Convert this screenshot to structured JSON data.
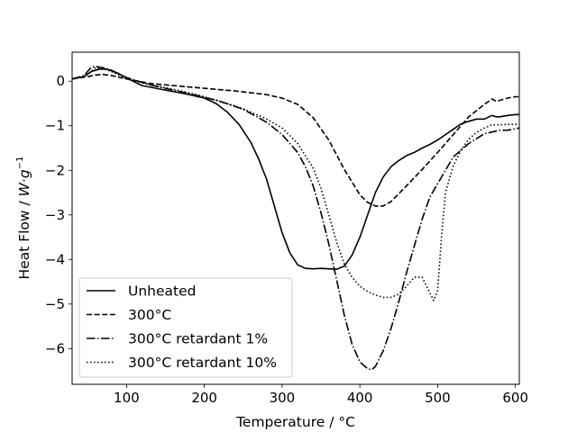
{
  "chart_data": {
    "type": "line",
    "xlabel": "Temperature / °C",
    "ylabel_parts": {
      "main": "Heat Flow / ",
      "w": "W",
      "dot": "·",
      "g": "g",
      "exp": "−1"
    },
    "xlim": [
      30,
      605
    ],
    "ylim": [
      -6.8,
      0.65
    ],
    "xticks": [
      100,
      200,
      300,
      400,
      500,
      600
    ],
    "xtick_labels": [
      "100",
      "200",
      "300",
      "400",
      "500",
      "600"
    ],
    "yticks": [
      0,
      -1,
      -2,
      -3,
      -4,
      -5,
      -6
    ],
    "ytick_labels": [
      "0",
      "−1",
      "−2",
      "−3",
      "−4",
      "−5",
      "−6"
    ],
    "grid": false,
    "legend_position": "lower-left",
    "series": [
      {
        "name": "Unheated",
        "dash": "solid",
        "x": [
          30,
          45,
          55,
          65,
          75,
          90,
          100,
          120,
          150,
          175,
          200,
          215,
          230,
          245,
          260,
          270,
          280,
          290,
          300,
          310,
          320,
          330,
          340,
          350,
          360,
          370,
          380,
          390,
          400,
          410,
          420,
          430,
          440,
          450,
          460,
          470,
          480,
          490,
          500,
          510,
          520,
          530,
          540,
          550,
          560,
          565,
          570,
          575,
          580,
          590,
          600,
          605
        ],
        "y": [
          0.05,
          0.1,
          0.22,
          0.27,
          0.27,
          0.17,
          0.07,
          -0.1,
          -0.2,
          -0.28,
          -0.38,
          -0.5,
          -0.7,
          -0.98,
          -1.38,
          -1.75,
          -2.2,
          -2.8,
          -3.4,
          -3.85,
          -4.12,
          -4.2,
          -4.21,
          -4.2,
          -4.21,
          -4.22,
          -4.15,
          -3.9,
          -3.5,
          -3.0,
          -2.5,
          -2.15,
          -1.92,
          -1.78,
          -1.67,
          -1.6,
          -1.5,
          -1.42,
          -1.32,
          -1.2,
          -1.08,
          -0.96,
          -0.9,
          -0.85,
          -0.85,
          -0.81,
          -0.77,
          -0.8,
          -0.8,
          -0.77,
          -0.75,
          -0.75
        ]
      },
      {
        "name": "300°C",
        "dash": "dashed",
        "x": [
          30,
          50,
          60,
          70,
          80,
          100,
          130,
          160,
          200,
          240,
          280,
          300,
          320,
          340,
          360,
          380,
          400,
          410,
          420,
          430,
          440,
          460,
          480,
          500,
          520,
          540,
          560,
          570,
          575,
          580,
          590,
          600,
          605
        ],
        "y": [
          0.05,
          0.1,
          0.14,
          0.15,
          0.13,
          0.05,
          -0.05,
          -0.1,
          -0.16,
          -0.22,
          -0.3,
          -0.38,
          -0.52,
          -0.82,
          -1.32,
          -1.98,
          -2.55,
          -2.72,
          -2.8,
          -2.8,
          -2.7,
          -2.35,
          -1.98,
          -1.6,
          -1.2,
          -0.8,
          -0.52,
          -0.4,
          -0.45,
          -0.43,
          -0.38,
          -0.35,
          -0.35
        ]
      },
      {
        "name": "300°C retardant 1%",
        "dash": "dashdot",
        "x": [
          30,
          45,
          55,
          60,
          70,
          80,
          100,
          130,
          160,
          190,
          220,
          250,
          280,
          300,
          320,
          330,
          340,
          350,
          360,
          370,
          380,
          390,
          400,
          410,
          415,
          420,
          430,
          440,
          450,
          460,
          470,
          480,
          490,
          500,
          510,
          520,
          540,
          560,
          575,
          580,
          590,
          605
        ],
        "y": [
          0.05,
          0.12,
          0.32,
          0.33,
          0.3,
          0.25,
          0.08,
          -0.08,
          -0.2,
          -0.32,
          -0.45,
          -0.63,
          -0.92,
          -1.2,
          -1.6,
          -1.92,
          -2.35,
          -2.95,
          -3.65,
          -4.45,
          -5.25,
          -5.9,
          -6.3,
          -6.45,
          -6.47,
          -6.4,
          -6.05,
          -5.55,
          -4.95,
          -4.3,
          -3.7,
          -3.1,
          -2.6,
          -2.3,
          -2.0,
          -1.7,
          -1.4,
          -1.18,
          -1.12,
          -1.1,
          -1.1,
          -1.05
        ]
      },
      {
        "name": "300°C retardant 10%",
        "dash": "dotted",
        "x": [
          30,
          50,
          60,
          70,
          80,
          100,
          130,
          160,
          190,
          220,
          250,
          280,
          300,
          320,
          340,
          350,
          360,
          370,
          380,
          390,
          400,
          410,
          420,
          430,
          440,
          450,
          460,
          470,
          480,
          490,
          495,
          500,
          505,
          510,
          520,
          530,
          540,
          550,
          560,
          570,
          580,
          590,
          605
        ],
        "y": [
          0.05,
          0.15,
          0.3,
          0.28,
          0.22,
          0.05,
          -0.08,
          -0.18,
          -0.3,
          -0.45,
          -0.62,
          -0.85,
          -1.05,
          -1.4,
          -1.95,
          -2.4,
          -3.0,
          -3.6,
          -4.1,
          -4.4,
          -4.6,
          -4.72,
          -4.8,
          -4.85,
          -4.85,
          -4.78,
          -4.6,
          -4.4,
          -4.4,
          -4.75,
          -4.92,
          -4.7,
          -3.5,
          -2.5,
          -1.9,
          -1.55,
          -1.3,
          -1.15,
          -1.05,
          -0.98,
          -0.98,
          -0.97,
          -0.97
        ]
      }
    ]
  }
}
